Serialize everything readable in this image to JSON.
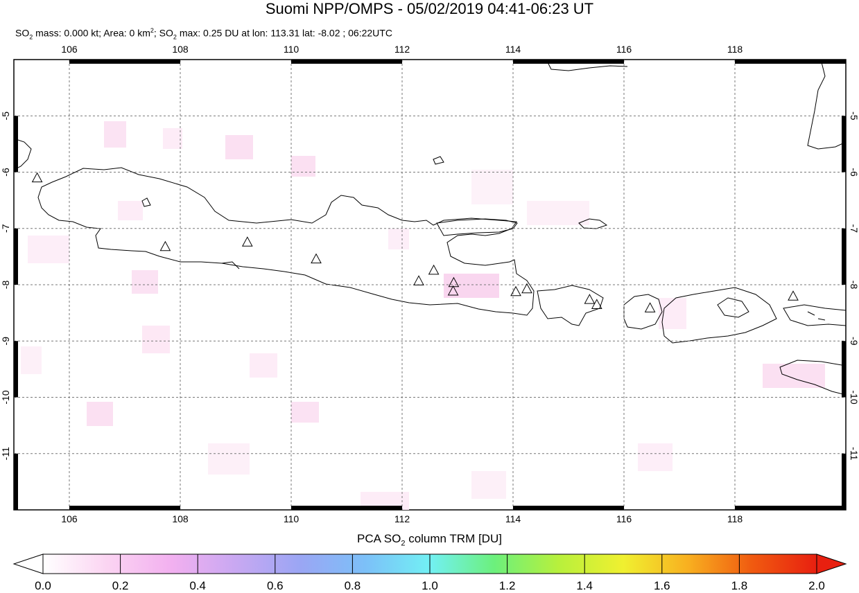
{
  "header": {
    "title": "Suomi NPP/OMPS - 05/02/2019 04:41-06:23 UT",
    "stats": {
      "mass_label": "SO",
      "mass_sub": "2",
      "mass_text": " mass: 0.000 kt; Area: 0 km",
      "area_sup": "2",
      "max_label": "; SO",
      "max_sub": "2",
      "max_text": " max: 0.25 DU at lon: 113.31 lat: -8.02 ; 06:22UTC"
    }
  },
  "map": {
    "lon_range": [
      105.0,
      120.0
    ],
    "lat_range": [
      -12.0,
      -4.0
    ],
    "lon_ticks": [
      106,
      108,
      110,
      112,
      114,
      116,
      118
    ],
    "lon_tick_labels": [
      "106",
      "108",
      "110",
      "112",
      "114",
      "116",
      "118"
    ],
    "lat_ticks": [
      -5,
      -6,
      -7,
      -8,
      -9,
      -10,
      -11
    ],
    "lat_tick_labels": [
      "-5",
      "-6",
      "-7",
      "-8",
      "-9",
      "-10",
      "-11"
    ],
    "grid": "dashed",
    "volcano_marker": "triangle-icon",
    "volcanoes": [
      {
        "lon": 105.42,
        "lat": -6.1
      },
      {
        "lon": 107.73,
        "lat": -7.32
      },
      {
        "lon": 109.21,
        "lat": -7.24
      },
      {
        "lon": 110.45,
        "lat": -7.54
      },
      {
        "lon": 112.3,
        "lat": -7.93
      },
      {
        "lon": 112.57,
        "lat": -7.74
      },
      {
        "lon": 112.93,
        "lat": -7.96
      },
      {
        "lon": 112.92,
        "lat": -8.11
      },
      {
        "lon": 114.05,
        "lat": -8.12
      },
      {
        "lon": 114.25,
        "lat": -8.07
      },
      {
        "lon": 115.38,
        "lat": -8.26
      },
      {
        "lon": 115.51,
        "lat": -8.35
      },
      {
        "lon": 116.47,
        "lat": -8.41
      },
      {
        "lon": 119.05,
        "lat": -8.2
      }
    ]
  },
  "colorbar": {
    "title_main": "PCA SO",
    "title_sub": "2",
    "title_rest": " column TRM [DU]",
    "min": 0.0,
    "max": 2.0,
    "tick_labels": [
      "0.0",
      "0.2",
      "0.4",
      "0.6",
      "0.8",
      "1.0",
      "1.2",
      "1.4",
      "1.6",
      "1.8",
      "2.0"
    ],
    "colors": [
      "#ffffff",
      "#fbd4f2",
      "#f2b0f0",
      "#c8a8f2",
      "#9aa6f4",
      "#7cc0f8",
      "#72f0f4",
      "#6cf07c",
      "#b8f03c",
      "#f0f030",
      "#f8b020",
      "#f05a10",
      "#e82010"
    ]
  }
}
